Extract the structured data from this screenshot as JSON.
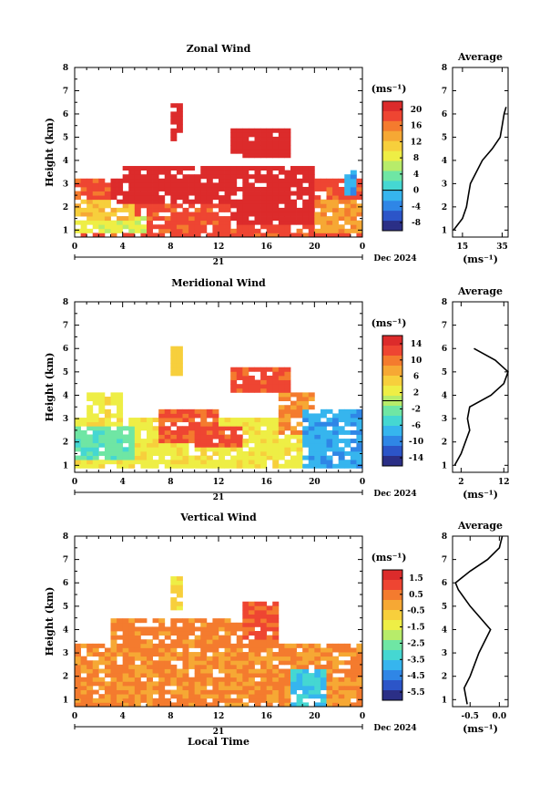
{
  "chart_data": [
    {
      "type": "heatmap",
      "title": "Zonal Wind",
      "ylabel": "Height (km)",
      "unit_label": "(ms⁻¹)",
      "x_ticks": [
        "0",
        "4",
        "8",
        "12",
        "16",
        "20",
        "0"
      ],
      "day_label": "21",
      "date_label": "Dec 2024",
      "xlabel": "",
      "y_ticks": [
        "1",
        "2",
        "3",
        "4",
        "5",
        "6",
        "7",
        "8"
      ],
      "ylim": [
        0.7,
        8
      ],
      "xlim": [
        0,
        24
      ],
      "colorbar": {
        "ticks": [
          "20",
          "16",
          "12",
          "8",
          "4",
          "0",
          "-4",
          "-8"
        ],
        "range": [
          -10,
          22
        ],
        "zero_value": 0
      },
      "field_kind": "zonal",
      "regions": [
        {
          "x0": 0,
          "x1": 24,
          "y0": 0.7,
          "y1": 3.3,
          "v": 18
        },
        {
          "x0": 0,
          "x1": 6,
          "y0": 0.8,
          "y1": 1.6,
          "v": 8
        },
        {
          "x0": 0,
          "x1": 5,
          "y0": 1.5,
          "y1": 2.4,
          "v": 12
        },
        {
          "x0": 3,
          "x1": 13,
          "y0": 2.1,
          "y1": 3.3,
          "v": 21
        },
        {
          "x0": 13,
          "x1": 20,
          "y0": 1.2,
          "y1": 3.8,
          "v": 21
        },
        {
          "x0": 4,
          "x1": 18,
          "y0": 3.2,
          "y1": 3.7,
          "v": 21
        },
        {
          "x0": 8,
          "x1": 9,
          "y0": 4.8,
          "y1": 6.4,
          "v": 21
        },
        {
          "x0": 13,
          "x1": 18,
          "y0": 4.2,
          "y1": 5.4,
          "v": 21
        },
        {
          "x0": 20,
          "x1": 24,
          "y0": 0.8,
          "y1": 2.4,
          "v": 14
        },
        {
          "x0": 22.5,
          "x1": 23.3,
          "y0": 2.5,
          "y1": 3.5,
          "v": -2
        }
      ],
      "profile": {
        "title": "Average",
        "xlabel": "(ms⁻¹)",
        "x_ticks": [
          "15",
          "35"
        ],
        "xlim": [
          10,
          38
        ],
        "heights": [
          1.0,
          1.5,
          2.0,
          2.5,
          3.0,
          3.5,
          4.0,
          4.5,
          5.0,
          5.5,
          6.0,
          6.3
        ],
        "values": [
          10.5,
          15,
          17,
          18,
          19,
          22,
          25,
          30,
          34,
          35,
          36,
          37
        ]
      }
    },
    {
      "type": "heatmap",
      "title": "Meridional Wind",
      "ylabel": "Height (km)",
      "unit_label": "(ms⁻¹)",
      "x_ticks": [
        "0",
        "4",
        "8",
        "12",
        "16",
        "20",
        "0"
      ],
      "day_label": "21",
      "date_label": "Dec 2024",
      "xlabel": "",
      "y_ticks": [
        "1",
        "2",
        "3",
        "4",
        "5",
        "6",
        "7",
        "8"
      ],
      "ylim": [
        0.7,
        8
      ],
      "xlim": [
        0,
        24
      ],
      "colorbar": {
        "ticks": [
          "14",
          "10",
          "6",
          "2",
          "-2",
          "-6",
          "-10",
          "-14"
        ],
        "range": [
          -16,
          16
        ],
        "zero_value": 0
      },
      "field_kind": "meridional",
      "regions": [
        {
          "x0": 0,
          "x1": 24,
          "y0": 0.8,
          "y1": 3.0,
          "v": 3
        },
        {
          "x0": 0,
          "x1": 5,
          "y0": 1.2,
          "y1": 2.7,
          "v": -3
        },
        {
          "x0": 7,
          "x1": 12,
          "y0": 2.0,
          "y1": 3.4,
          "v": 11
        },
        {
          "x0": 10,
          "x1": 14,
          "y0": 1.7,
          "y1": 2.6,
          "v": 12
        },
        {
          "x0": 13,
          "x1": 18,
          "y0": 4.2,
          "y1": 5.2,
          "v": 12
        },
        {
          "x0": 17,
          "x1": 20,
          "y0": 2.4,
          "y1": 4.1,
          "v": 9
        },
        {
          "x0": 19,
          "x1": 24,
          "y0": 0.8,
          "y1": 3.4,
          "v": -8
        },
        {
          "x0": 1,
          "x1": 4,
          "y0": 3.0,
          "y1": 4.2,
          "v": 3
        },
        {
          "x0": 8,
          "x1": 9,
          "y0": 4.8,
          "y1": 6.1,
          "v": 5
        }
      ],
      "profile": {
        "title": "Average",
        "xlabel": "(ms⁻¹)",
        "x_ticks": [
          "2",
          "12"
        ],
        "xlim": [
          0,
          13
        ],
        "heights": [
          1.0,
          1.5,
          2.0,
          2.5,
          3.0,
          3.5,
          4.0,
          4.5,
          5.0,
          5.5,
          6.0
        ],
        "values": [
          0.5,
          2,
          3,
          4,
          3.5,
          4,
          9,
          12,
          13,
          10,
          5
        ]
      }
    },
    {
      "type": "heatmap",
      "title": "Vertical Wind",
      "ylabel": "Height (km)",
      "unit_label": "(ms⁻¹)",
      "x_ticks": [
        "0",
        "4",
        "8",
        "12",
        "16",
        "20",
        "0"
      ],
      "day_label": "21",
      "date_label": "Dec 2024",
      "xlabel": "Local Time",
      "y_ticks": [
        "1",
        "2",
        "3",
        "4",
        "5",
        "6",
        "7",
        "8"
      ],
      "ylim": [
        0.7,
        8
      ],
      "xlim": [
        0,
        24
      ],
      "colorbar": {
        "ticks": [
          "1.5",
          "0.5",
          "-0.5",
          "-1.5",
          "-2.5",
          "-3.5",
          "-4.5",
          "-5.5"
        ],
        "range": [
          -6,
          2
        ],
        "zero_value": null
      },
      "field_kind": "vertical",
      "regions": [
        {
          "x0": 0,
          "x1": 24,
          "y0": 0.7,
          "y1": 3.4,
          "v": 0.2
        },
        {
          "x0": 3,
          "x1": 17,
          "y0": 3.3,
          "y1": 4.4,
          "v": 0.4
        },
        {
          "x0": 14,
          "x1": 17,
          "y0": 3.6,
          "y1": 5.2,
          "v": 0.8
        },
        {
          "x0": 18,
          "x1": 21,
          "y0": 0.7,
          "y1": 2.4,
          "v": -3.5
        },
        {
          "x0": 8,
          "x1": 9,
          "y0": 4.8,
          "y1": 6.2,
          "v": -1.0
        }
      ],
      "profile": {
        "title": "Average",
        "xlabel": "(ms⁻¹)",
        "x_ticks": [
          "-0.5",
          "0.0"
        ],
        "xlim": [
          -0.8,
          0.15
        ],
        "heights": [
          0.8,
          1.5,
          2.0,
          3.0,
          4.0,
          5.0,
          5.7,
          6.0,
          6.5,
          7.0,
          7.5,
          8.0
        ],
        "values": [
          -0.55,
          -0.6,
          -0.5,
          -0.35,
          -0.15,
          -0.5,
          -0.7,
          -0.75,
          -0.5,
          -0.2,
          0.0,
          0.05
        ]
      }
    }
  ]
}
